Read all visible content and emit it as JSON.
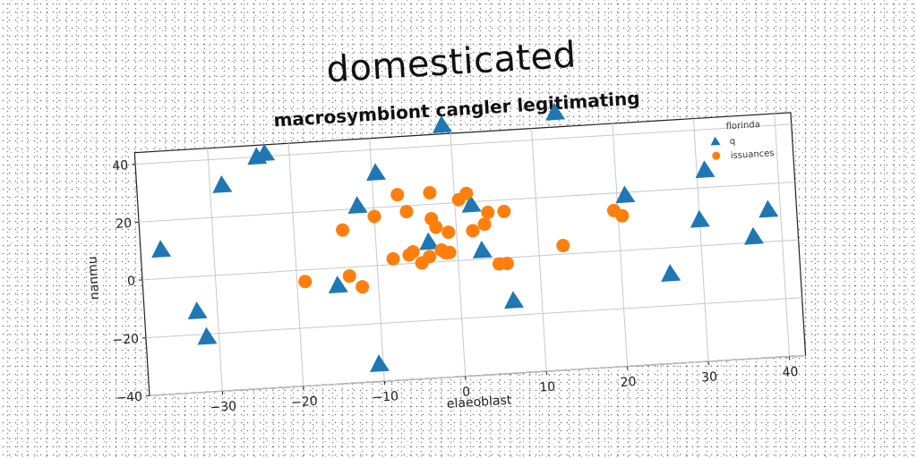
{
  "header": {
    "suptitle": "domesticated",
    "title": "macrosymbiont cangler legitimating"
  },
  "chart_data": {
    "type": "scatter",
    "title": "macrosymbiont cangler legitimating",
    "xlabel": "elaeoblast",
    "ylabel": "nanmu",
    "xlim": [
      -39,
      42
    ],
    "ylim": [
      -40,
      44
    ],
    "x_ticks": [
      -30,
      -20,
      -10,
      0,
      10,
      20,
      30,
      40
    ],
    "y_ticks": [
      -40,
      -20,
      0,
      20,
      40
    ],
    "x_tick_labels": [
      "−30",
      "−20",
      "−10",
      "0",
      "10",
      "20",
      "30",
      "40"
    ],
    "y_tick_labels": [
      "−40",
      "−20",
      "0",
      "20",
      "40"
    ],
    "grid": true,
    "legend": {
      "title": "florinda",
      "placement": "top-right"
    },
    "series": [
      {
        "name": "q",
        "marker": "triangle",
        "color": "#1f77b4",
        "points": [
          [
            -36.5,
            10
          ],
          [
            -32.5,
            -12
          ],
          [
            -31.5,
            -21
          ],
          [
            -28.5,
            31
          ],
          [
            -24,
            40
          ],
          [
            -23,
            41
          ],
          [
            -15,
            -6
          ],
          [
            -12,
            21
          ],
          [
            -9.5,
            32
          ],
          [
            -10.5,
            -34
          ],
          [
            -3.5,
            7
          ],
          [
            -1,
            47
          ],
          [
            2,
            19
          ],
          [
            3,
            3
          ],
          [
            6.5,
            -15
          ],
          [
            13,
            49
          ],
          [
            21,
            19
          ],
          [
            26,
            -9
          ],
          [
            30,
            9
          ],
          [
            31,
            26
          ],
          [
            36.5,
            2
          ],
          [
            38.5,
            11
          ]
        ]
      },
      {
        "name": "issuances",
        "marker": "circle",
        "color": "#ff7f0e",
        "points": [
          [
            -19,
            -4
          ],
          [
            -14,
            13
          ],
          [
            -13.5,
            -3
          ],
          [
            -12,
            -7
          ],
          [
            -10,
            17
          ],
          [
            -8,
            2
          ],
          [
            -7,
            24
          ],
          [
            -6,
            18
          ],
          [
            -6,
            3
          ],
          [
            -5.5,
            4
          ],
          [
            -4.5,
            0
          ],
          [
            -3.5,
            2
          ],
          [
            -3,
            15
          ],
          [
            -3,
            24
          ],
          [
            -2.5,
            12
          ],
          [
            -2,
            4
          ],
          [
            -1.5,
            3
          ],
          [
            -1,
            10
          ],
          [
            -1,
            3
          ],
          [
            0.5,
            21
          ],
          [
            1.5,
            23
          ],
          [
            2,
            10
          ],
          [
            3.5,
            12
          ],
          [
            4,
            16
          ],
          [
            5,
            -2
          ],
          [
            6,
            16
          ],
          [
            6,
            -2
          ],
          [
            13,
            3
          ],
          [
            19.5,
            14
          ],
          [
            20.5,
            12
          ]
        ]
      }
    ]
  }
}
